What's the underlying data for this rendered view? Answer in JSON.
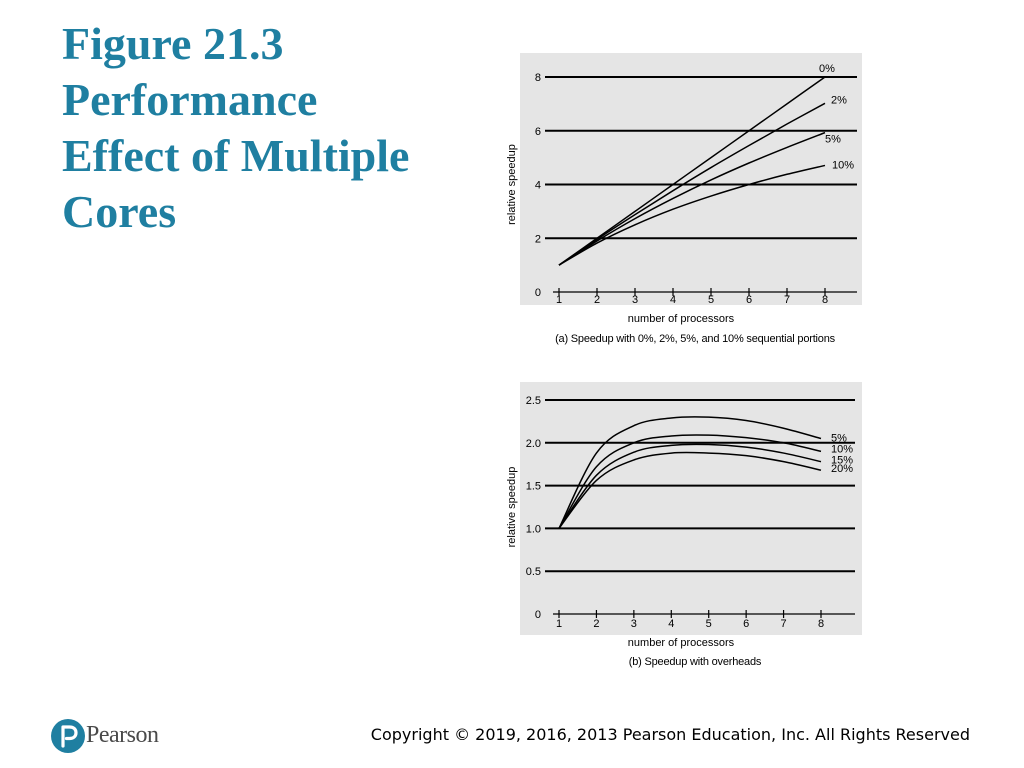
{
  "slide": {
    "title_lines": [
      "Figure 21.3",
      "Performance",
      "Effect of Multiple",
      "Cores"
    ],
    "title_color": "#1f7fa1"
  },
  "chart_data": [
    {
      "type": "line",
      "caption": "(a) Speedup with 0%, 2%, 5%, and 10% sequential portions",
      "xlabel": "number of processors",
      "ylabel": "relative speedup",
      "x": [
        1,
        2,
        3,
        4,
        5,
        6,
        7,
        8
      ],
      "xticks": [
        "1",
        "2",
        "3",
        "4",
        "5",
        "6",
        "7",
        "8"
      ],
      "ylim": [
        0,
        8
      ],
      "yticks": [
        "0",
        "2",
        "4",
        "6",
        "8"
      ],
      "grid": true,
      "background": "#e5e5e5",
      "series": [
        {
          "name": "0%",
          "values": [
            1.0,
            2.0,
            3.0,
            4.0,
            5.0,
            6.0,
            7.0,
            8.0
          ]
        },
        {
          "name": "2%",
          "values": [
            1.0,
            1.96,
            2.88,
            3.77,
            4.63,
            5.45,
            6.25,
            7.02
          ]
        },
        {
          "name": "5%",
          "values": [
            1.0,
            1.9,
            2.73,
            3.48,
            4.17,
            4.8,
            5.38,
            5.93
          ]
        },
        {
          "name": "10%",
          "values": [
            1.0,
            1.82,
            2.5,
            3.08,
            3.57,
            4.0,
            4.38,
            4.71
          ]
        }
      ]
    },
    {
      "type": "line",
      "caption": "(b) Speedup with overheads",
      "xlabel": "number of processors",
      "ylabel": "relative speedup",
      "x": [
        1,
        2,
        3,
        4,
        5,
        6,
        7,
        8
      ],
      "xticks": [
        "1",
        "2",
        "3",
        "4",
        "5",
        "6",
        "7",
        "8"
      ],
      "ylim": [
        0,
        2.5
      ],
      "yticks": [
        "0",
        "0.5",
        "1.0",
        "1.5",
        "2.0",
        "2.5"
      ],
      "grid": true,
      "background": "#e5e5e5",
      "series": [
        {
          "name": "5%",
          "values": [
            1.0,
            1.88,
            2.2,
            2.29,
            2.3,
            2.26,
            2.17,
            2.05
          ]
        },
        {
          "name": "10%",
          "values": [
            1.0,
            1.72,
            2.0,
            2.08,
            2.09,
            2.06,
            2.0,
            1.9
          ]
        },
        {
          "name": "15%",
          "values": [
            1.0,
            1.62,
            1.89,
            1.97,
            1.98,
            1.95,
            1.88,
            1.78
          ]
        },
        {
          "name": "20%",
          "values": [
            1.0,
            1.56,
            1.8,
            1.88,
            1.88,
            1.85,
            1.78,
            1.68
          ]
        }
      ]
    }
  ],
  "footer": {
    "logo_text": "Pearson",
    "copyright": "Copyright © 2019, 2016, 2013 Pearson Education, Inc. All Rights Reserved"
  }
}
